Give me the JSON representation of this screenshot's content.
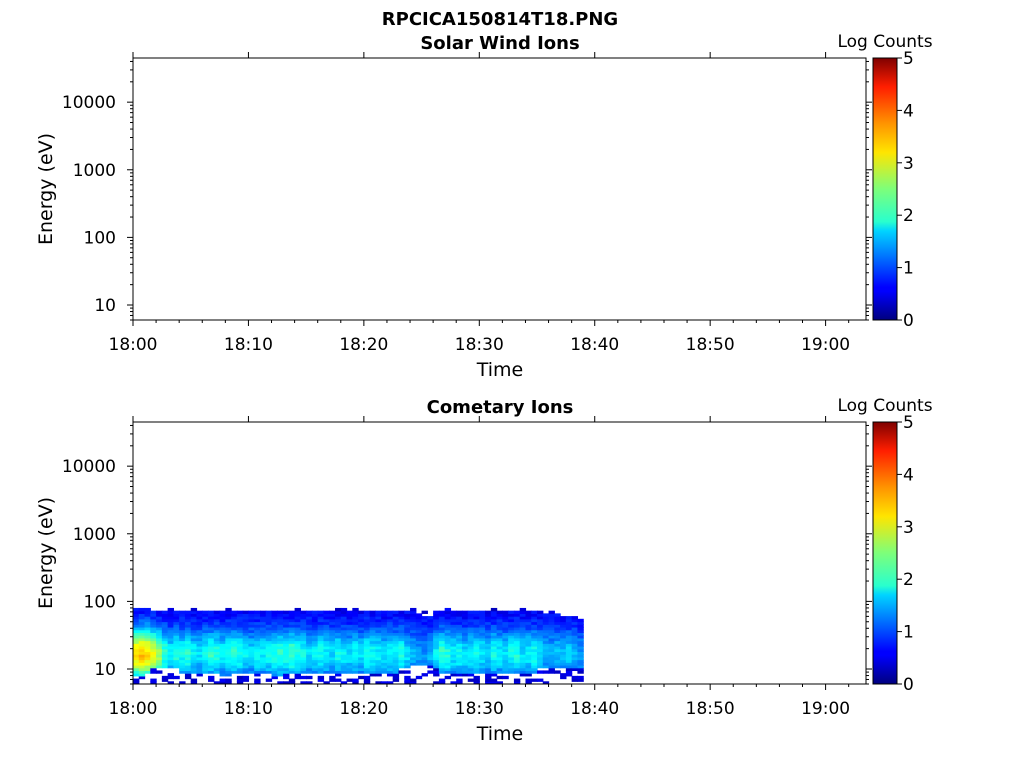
{
  "figure": {
    "title": "RPCICA150814T18.PNG"
  },
  "chart_data": [
    {
      "type": "heatmap",
      "title": "Solar Wind Ions",
      "xlabel": "Time",
      "ylabel": "Energy (eV)",
      "x_ticks": [
        "18:00",
        "18:10",
        "18:20",
        "18:30",
        "18:40",
        "18:50",
        "19:00"
      ],
      "xlim_minutes": [
        0,
        63.5
      ],
      "y_scale": "log",
      "y_ticks": [
        "10",
        "100",
        "1000",
        "10000"
      ],
      "ylim": [
        6,
        45000
      ],
      "colorbar": {
        "label": "Log Counts",
        "ticks": [
          "0",
          "1",
          "2",
          "3",
          "4",
          "5"
        ],
        "range": [
          0,
          5
        ],
        "colormap": "jet"
      },
      "bands": []
    },
    {
      "type": "heatmap",
      "title": "Cometary Ions",
      "xlabel": "Time",
      "ylabel": "Energy (eV)",
      "x_ticks": [
        "18:00",
        "18:10",
        "18:20",
        "18:30",
        "18:40",
        "18:50",
        "19:00"
      ],
      "xlim_minutes": [
        0,
        63.5
      ],
      "y_scale": "log",
      "y_ticks": [
        "10",
        "100",
        "1000",
        "10000"
      ],
      "ylim": [
        6,
        45000
      ],
      "colorbar": {
        "label": "Log Counts",
        "ticks": [
          "0",
          "1",
          "2",
          "3",
          "4",
          "5"
        ],
        "range": [
          0,
          5
        ],
        "colormap": "jet"
      },
      "data_extent": {
        "t_start_min": 0,
        "t_end_min": 38.7,
        "e_min": 6,
        "e_max": 80
      },
      "bands": [
        [
          0.0,
          8,
          82,
          2.8
        ],
        [
          0.5,
          8,
          80,
          2.9
        ],
        [
          1.0,
          9,
          78,
          2.8
        ],
        [
          1.5,
          10,
          76,
          2.5
        ],
        [
          2.0,
          10,
          72,
          2.2
        ],
        [
          2.5,
          10,
          70,
          1.6
        ],
        [
          3.0,
          10,
          75,
          1.3
        ],
        [
          3.5,
          10,
          74,
          1.5
        ],
        [
          4.0,
          9,
          76,
          1.4
        ],
        [
          4.5,
          9,
          72,
          1.6
        ],
        [
          5.0,
          9,
          70,
          1.3
        ],
        [
          5.5,
          9,
          74,
          1.2
        ],
        [
          6.0,
          9,
          72,
          1.4
        ],
        [
          6.5,
          9,
          70,
          1.6
        ],
        [
          7.0,
          9,
          74,
          1.5
        ],
        [
          7.5,
          8,
          76,
          1.3
        ],
        [
          8.0,
          8,
          72,
          1.5
        ],
        [
          8.5,
          9,
          70,
          1.6
        ],
        [
          9.0,
          9,
          74,
          1.5
        ],
        [
          9.5,
          9,
          72,
          1.3
        ],
        [
          10.0,
          9,
          76,
          1.2
        ],
        [
          10.5,
          9,
          70,
          1.4
        ],
        [
          11.0,
          9,
          74,
          1.3
        ],
        [
          11.5,
          9,
          72,
          1.4
        ],
        [
          12.0,
          8,
          76,
          1.5
        ],
        [
          12.5,
          8,
          74,
          1.6
        ],
        [
          13.0,
          9,
          70,
          1.5
        ],
        [
          13.5,
          9,
          72,
          1.7
        ],
        [
          14.0,
          9,
          76,
          1.5
        ],
        [
          14.5,
          9,
          74,
          1.4
        ],
        [
          15.0,
          9,
          70,
          1.2
        ],
        [
          15.5,
          9,
          74,
          1.3
        ],
        [
          16.0,
          9,
          72,
          1.4
        ],
        [
          16.5,
          9,
          70,
          1.3
        ],
        [
          17.0,
          9,
          74,
          1.2
        ],
        [
          17.5,
          9,
          72,
          1.4
        ],
        [
          18.0,
          9,
          76,
          1.3
        ],
        [
          18.5,
          9,
          74,
          1.2
        ],
        [
          19.0,
          9,
          70,
          1.4
        ],
        [
          19.5,
          9,
          72,
          1.2
        ],
        [
          20.0,
          9,
          76,
          1.5
        ],
        [
          20.5,
          9,
          74,
          1.4
        ],
        [
          21.0,
          9,
          72,
          1.3
        ],
        [
          21.5,
          9,
          70,
          1.2
        ],
        [
          22.0,
          9,
          76,
          1.4
        ],
        [
          22.5,
          9,
          74,
          1.3
        ],
        [
          23.0,
          10,
          70,
          1.5
        ],
        [
          23.5,
          10,
          72,
          1.2
        ],
        [
          24.0,
          11,
          74,
          1.0
        ],
        [
          24.5,
          12,
          64,
          0.9
        ],
        [
          25.0,
          12,
          58,
          0.8
        ],
        [
          25.5,
          11,
          62,
          1.0
        ],
        [
          26.0,
          10,
          70,
          1.3
        ],
        [
          26.5,
          9,
          76,
          1.6
        ],
        [
          27.0,
          9,
          78,
          1.5
        ],
        [
          27.5,
          9,
          74,
          1.3
        ],
        [
          28.0,
          9,
          76,
          1.4
        ],
        [
          28.5,
          9,
          72,
          1.2
        ],
        [
          29.0,
          9,
          74,
          1.3
        ],
        [
          29.5,
          9,
          76,
          1.4
        ],
        [
          30.0,
          9,
          72,
          1.3
        ],
        [
          30.5,
          9,
          74,
          1.2
        ],
        [
          31.0,
          9,
          70,
          1.4
        ],
        [
          31.5,
          9,
          74,
          1.3
        ],
        [
          32.0,
          9,
          72,
          1.2
        ],
        [
          32.5,
          9,
          76,
          1.4
        ],
        [
          33.0,
          9,
          74,
          1.5
        ],
        [
          33.5,
          9,
          70,
          1.2
        ],
        [
          34.0,
          9,
          72,
          1.3
        ],
        [
          34.5,
          9,
          76,
          1.4
        ],
        [
          35.0,
          10,
          74,
          1.2
        ],
        [
          35.5,
          10,
          68,
          1.0
        ],
        [
          36.0,
          10,
          66,
          1.0
        ],
        [
          36.5,
          10,
          64,
          1.1
        ],
        [
          37.0,
          10,
          62,
          1.0
        ],
        [
          37.5,
          10,
          60,
          1.1
        ],
        [
          38.0,
          10,
          58,
          1.0
        ],
        [
          38.5,
          10,
          56,
          0.9
        ]
      ]
    }
  ]
}
